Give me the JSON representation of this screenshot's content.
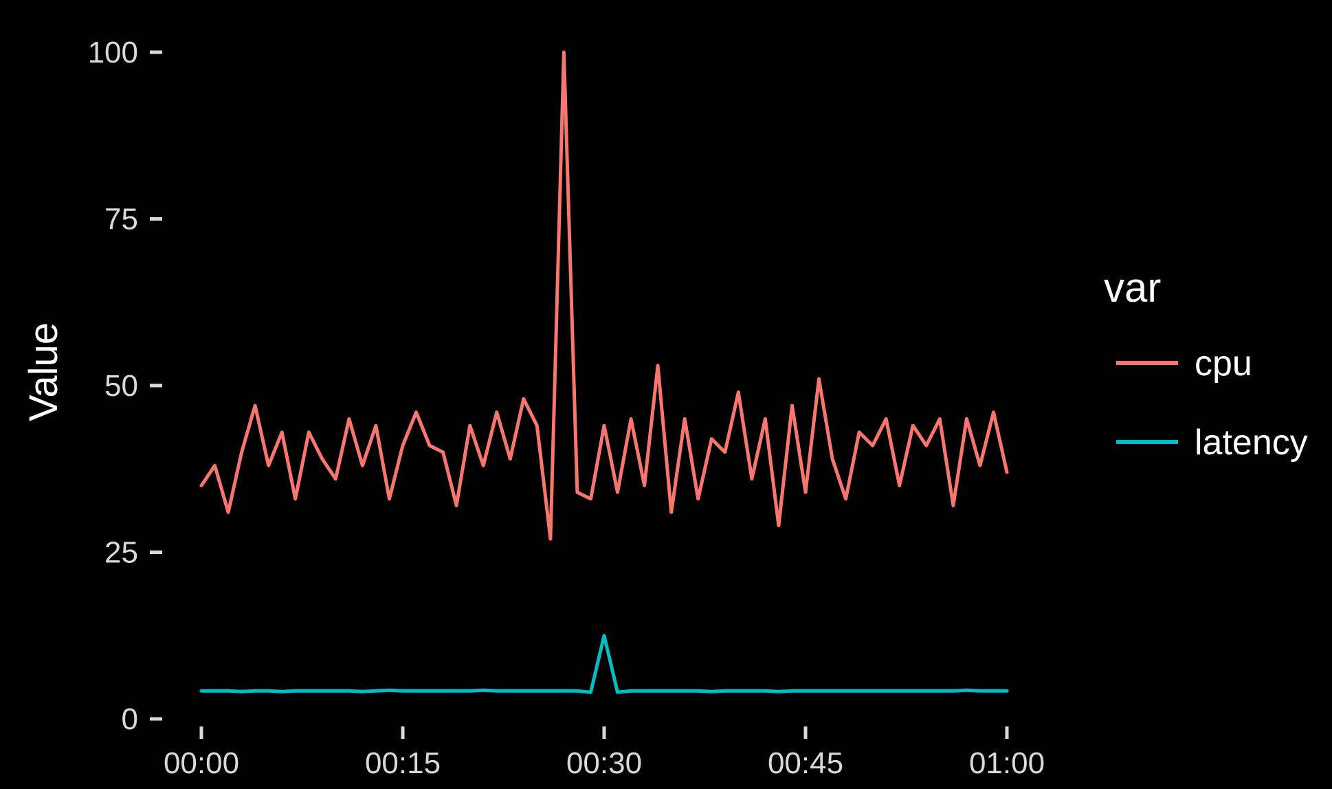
{
  "chart_data": {
    "type": "line",
    "xlabel": "",
    "ylabel": "Value",
    "x_ticks": [
      "00:00",
      "00:15",
      "00:30",
      "00:45",
      "01:00"
    ],
    "x_tick_minutes": [
      0,
      15,
      30,
      45,
      60
    ],
    "y_ticks": [
      0,
      25,
      50,
      75,
      100
    ],
    "xlim": [
      "00:00",
      "01:00"
    ],
    "ylim": [
      0,
      100
    ],
    "grid": false,
    "legend": {
      "title": "var",
      "position": "right"
    },
    "series": [
      {
        "name": "cpu",
        "color": "#F8766D",
        "times": [
          "00:00",
          "00:01",
          "00:02",
          "00:03",
          "00:04",
          "00:05",
          "00:06",
          "00:07",
          "00:08",
          "00:09",
          "00:10",
          "00:11",
          "00:12",
          "00:13",
          "00:14",
          "00:15",
          "00:16",
          "00:17",
          "00:18",
          "00:19",
          "00:20",
          "00:21",
          "00:22",
          "00:23",
          "00:24",
          "00:25",
          "00:26",
          "00:27",
          "00:28",
          "00:29",
          "00:30",
          "00:31",
          "00:32",
          "00:33",
          "00:34",
          "00:35",
          "00:36",
          "00:37",
          "00:38",
          "00:39",
          "00:40",
          "00:41",
          "00:42",
          "00:43",
          "00:44",
          "00:45",
          "00:46",
          "00:47",
          "00:48",
          "00:49",
          "00:50",
          "00:51",
          "00:52",
          "00:53",
          "00:54",
          "00:55",
          "00:56",
          "00:57",
          "00:58",
          "00:59",
          "01:00"
        ],
        "values": [
          35,
          38,
          31,
          40,
          47,
          38,
          43,
          33,
          43,
          39,
          36,
          45,
          38,
          44,
          33,
          41,
          46,
          41,
          40,
          32,
          44,
          38,
          46,
          39,
          48,
          44,
          27,
          100,
          34,
          33,
          44,
          34,
          45,
          35,
          53,
          31,
          45,
          33,
          42,
          40,
          49,
          36,
          45,
          29,
          47,
          34,
          51,
          39,
          33,
          43,
          41,
          45,
          35,
          44,
          41,
          45,
          32,
          45,
          38,
          46,
          37
        ]
      },
      {
        "name": "latency",
        "color": "#00BFC4",
        "times": [
          "00:00",
          "00:01",
          "00:02",
          "00:03",
          "00:04",
          "00:05",
          "00:06",
          "00:07",
          "00:08",
          "00:09",
          "00:10",
          "00:11",
          "00:12",
          "00:13",
          "00:14",
          "00:15",
          "00:16",
          "00:17",
          "00:18",
          "00:19",
          "00:20",
          "00:21",
          "00:22",
          "00:23",
          "00:24",
          "00:25",
          "00:26",
          "00:27",
          "00:28",
          "00:29",
          "00:30",
          "00:31",
          "00:32",
          "00:33",
          "00:34",
          "00:35",
          "00:36",
          "00:37",
          "00:38",
          "00:39",
          "00:40",
          "00:41",
          "00:42",
          "00:43",
          "00:44",
          "00:45",
          "00:46",
          "00:47",
          "00:48",
          "00:49",
          "00:50",
          "00:51",
          "00:52",
          "00:53",
          "00:54",
          "00:55",
          "00:56",
          "00:57",
          "00:58",
          "00:59",
          "01:00"
        ],
        "values": [
          4.2,
          4.2,
          4.2,
          4.1,
          4.2,
          4.2,
          4.1,
          4.2,
          4.2,
          4.2,
          4.2,
          4.2,
          4.1,
          4.2,
          4.3,
          4.2,
          4.2,
          4.2,
          4.2,
          4.2,
          4.2,
          4.3,
          4.2,
          4.2,
          4.2,
          4.2,
          4.2,
          4.2,
          4.2,
          4.0,
          12.5,
          4.0,
          4.2,
          4.2,
          4.2,
          4.2,
          4.2,
          4.2,
          4.1,
          4.2,
          4.2,
          4.2,
          4.2,
          4.1,
          4.2,
          4.2,
          4.2,
          4.2,
          4.2,
          4.2,
          4.2,
          4.2,
          4.2,
          4.2,
          4.2,
          4.2,
          4.2,
          4.3,
          4.2,
          4.2,
          4.2
        ]
      }
    ]
  }
}
